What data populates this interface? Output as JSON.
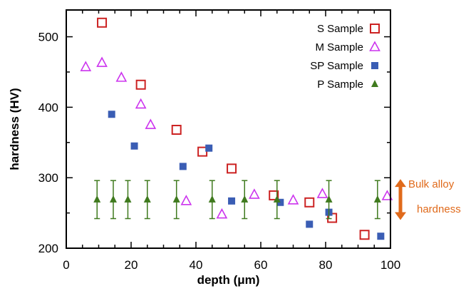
{
  "colors": {
    "s_sample": "#cc2222",
    "m_sample": "#cc33ee",
    "sp_sample": "#3a5db4",
    "p_sample": "#3f7a1e",
    "annotation": "#e06a1b"
  },
  "chart_data": {
    "type": "scatter",
    "title": "",
    "xlabel": "depth (μm)",
    "ylabel": "hardness (HV)",
    "xlim": [
      0,
      100
    ],
    "ylim": [
      200,
      550
    ],
    "xticks": [
      0,
      20,
      40,
      60,
      80,
      100
    ],
    "yticks": [
      200,
      300,
      400,
      500
    ],
    "legend_position": "top-right",
    "series": [
      {
        "name": "S Sample",
        "marker": "open-square",
        "color": "#cc2222",
        "x": [
          11,
          23,
          34,
          42,
          51,
          64,
          75,
          82,
          92
        ],
        "y": [
          520,
          432,
          368,
          337,
          313,
          275,
          265,
          243,
          219
        ]
      },
      {
        "name": "M Sample",
        "marker": "open-triangle",
        "color": "#cc33ee",
        "x": [
          6,
          11,
          17,
          23,
          26,
          37,
          48,
          58,
          70,
          79,
          99
        ],
        "y": [
          457,
          463,
          442,
          404,
          375,
          267,
          248,
          276,
          268,
          277,
          274
        ]
      },
      {
        "name": "SP Sample",
        "marker": "filled-square",
        "color": "#3a5db4",
        "x": [
          14,
          21,
          36,
          44,
          51,
          66,
          75,
          81,
          97
        ],
        "y": [
          390,
          345,
          316,
          342,
          267,
          265,
          234,
          251,
          217
        ]
      },
      {
        "name": "P Sample",
        "marker": "filled-triangle",
        "color": "#3f7a1e",
        "x": [
          9.5,
          14.5,
          19,
          25,
          34,
          45,
          55,
          65,
          81,
          96
        ],
        "y": [
          269,
          269,
          269,
          269,
          269,
          269,
          269,
          269,
          269,
          269
        ],
        "error": 27
      }
    ],
    "annotation": {
      "line1": "Bulk alloy",
      "line2": "hardness",
      "range": [
        242,
        296
      ]
    }
  }
}
